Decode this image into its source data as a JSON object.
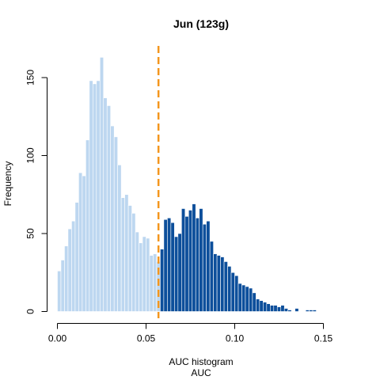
{
  "chart_data": {
    "type": "bar",
    "title": "Jun (123g)",
    "xlabel_line1": "AUC histogram",
    "xlabel_line2": "AUC",
    "ylabel": "Frequency",
    "xlim": [
      0.0,
      0.1625
    ],
    "ylim": [
      0,
      170
    ],
    "x_ticks": [
      0.0,
      0.05,
      0.1,
      0.15
    ],
    "x_tick_labels": [
      "0.00",
      "0.05",
      "0.10",
      "0.15"
    ],
    "y_ticks": [
      0,
      50,
      100,
      150
    ],
    "y_tick_labels": [
      "0",
      "50",
      "100",
      "150"
    ],
    "bin_width": 0.002,
    "bin_start": 0.0,
    "counts": [
      26,
      33,
      42,
      53,
      58,
      70,
      89,
      87,
      110,
      148,
      146,
      148,
      163,
      137,
      132,
      119,
      112,
      94,
      73,
      75,
      68,
      63,
      51,
      44,
      48,
      47,
      36,
      37,
      32,
      40,
      59,
      60,
      57,
      48,
      50,
      66,
      61,
      65,
      69,
      60,
      66,
      56,
      58,
      45,
      37,
      36,
      35,
      32,
      29,
      25,
      23,
      18,
      17,
      16,
      15,
      12,
      8,
      7,
      6,
      5,
      4,
      4,
      3,
      4,
      2,
      1,
      0,
      2,
      0,
      0,
      1,
      1,
      1,
      0,
      0,
      0,
      0,
      0,
      0,
      0,
      0,
      0
    ],
    "threshold": 0.057,
    "colors": {
      "below": "#bdd7f0",
      "above": "#0d4f9b",
      "threshold_line": "#f4961e"
    }
  }
}
